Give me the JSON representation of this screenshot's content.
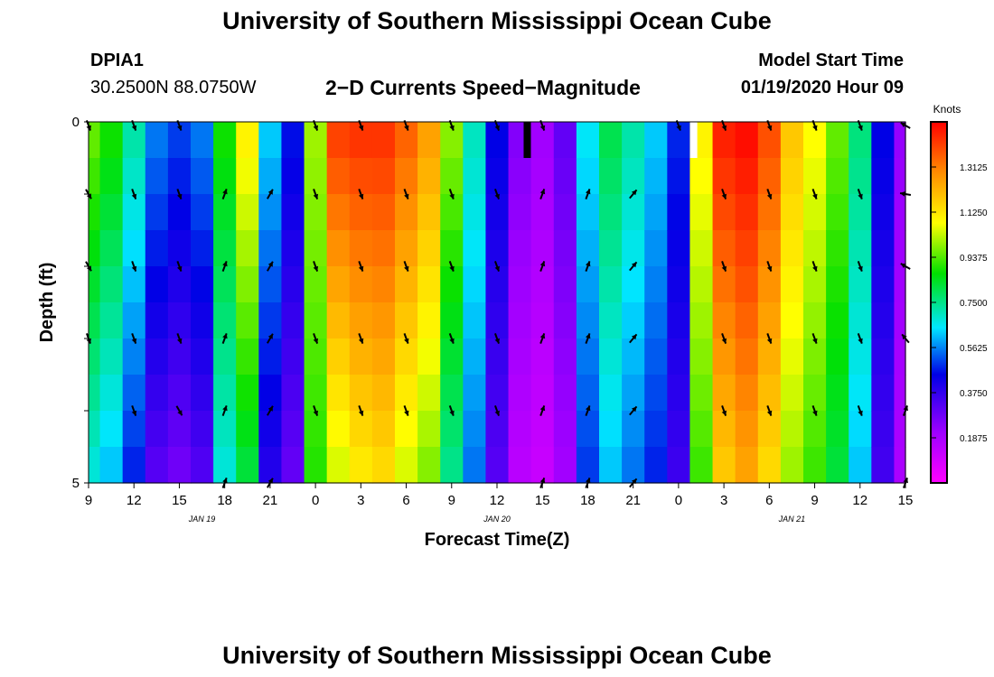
{
  "header": {
    "title": "University of Southern Mississippi Ocean Cube",
    "station_id": "DPIA1",
    "coordinates": "30.2500N 88.0750W",
    "subtitle": "2−D Currents Speed−Magnitude",
    "model_start_label": "Model Start Time",
    "model_start_value": "01/19/2020 Hour 09"
  },
  "footer": {
    "title": "University of Southern Mississippi Ocean Cube"
  },
  "chart_data": {
    "type": "heatmap",
    "title": "2−D Currents Speed−Magnitude",
    "xlabel": "Forecast Time(Z)",
    "ylabel": "Depth (ft)",
    "x_range_hours": [
      0,
      54
    ],
    "y_range_ft": [
      0,
      5
    ],
    "x_ticks": [
      {
        "hour": 0,
        "label": "9"
      },
      {
        "hour": 3,
        "label": "12"
      },
      {
        "hour": 6,
        "label": "15"
      },
      {
        "hour": 9,
        "label": "18"
      },
      {
        "hour": 12,
        "label": "21"
      },
      {
        "hour": 15,
        "label": "0"
      },
      {
        "hour": 18,
        "label": "3"
      },
      {
        "hour": 21,
        "label": "6"
      },
      {
        "hour": 24,
        "label": "9"
      },
      {
        "hour": 27,
        "label": "12"
      },
      {
        "hour": 30,
        "label": "15"
      },
      {
        "hour": 33,
        "label": "18"
      },
      {
        "hour": 36,
        "label": "21"
      },
      {
        "hour": 39,
        "label": "0"
      },
      {
        "hour": 42,
        "label": "3"
      },
      {
        "hour": 45,
        "label": "6"
      },
      {
        "hour": 48,
        "label": "9"
      },
      {
        "hour": 51,
        "label": "12"
      },
      {
        "hour": 54,
        "label": "15"
      }
    ],
    "date_labels": [
      {
        "hour": 7.5,
        "label": "JAN 19"
      },
      {
        "hour": 27,
        "label": "JAN 20"
      },
      {
        "hour": 46.5,
        "label": "JAN 21"
      }
    ],
    "y_ticks": [
      {
        "depth": 0,
        "label": "0"
      },
      {
        "depth": 1,
        "label": ""
      },
      {
        "depth": 2,
        "label": ""
      },
      {
        "depth": 3,
        "label": ""
      },
      {
        "depth": 4,
        "label": ""
      },
      {
        "depth": 5,
        "label": "5"
      }
    ],
    "colorbar": {
      "title": "Knots",
      "range": [
        0.0,
        1.5
      ],
      "tick_values": [
        0.1875,
        0.375,
        0.5625,
        0.75,
        0.9375,
        1.125,
        1.3125
      ],
      "tick_labels": [
        "0.1875",
        "0.3750",
        "0.5625",
        "0.7500",
        "0.9375",
        "1.1250",
        "1.3125"
      ]
    },
    "depth_bin_labels": [
      "0.25",
      "0.75",
      "1.25",
      "1.75",
      "2.25",
      "2.75",
      "3.25",
      "3.75",
      "4.25",
      "4.75"
    ],
    "speed_profile_surface_knots": [
      0.95,
      0.88,
      0.72,
      0.55,
      0.5,
      0.55,
      0.88,
      1.1,
      0.62,
      0.46,
      1.0,
      1.4,
      1.42,
      1.42,
      1.35,
      1.25,
      0.98,
      0.7,
      0.45,
      0.25,
      0.2,
      0.3,
      0.65,
      0.8,
      0.72,
      0.62,
      0.48,
      1.1,
      1.45,
      1.48,
      1.38,
      1.18,
      1.08,
      0.95,
      0.76,
      0.45,
      0.22
    ],
    "speed_profile_bottom_knots": [
      0.68,
      0.62,
      0.48,
      0.32,
      0.28,
      0.33,
      0.68,
      0.82,
      0.4,
      0.3,
      0.9,
      1.05,
      1.12,
      1.15,
      1.05,
      0.98,
      0.75,
      0.55,
      0.32,
      0.15,
      0.12,
      0.2,
      0.5,
      0.62,
      0.55,
      0.48,
      0.36,
      0.92,
      1.18,
      1.25,
      1.15,
      1.0,
      0.92,
      0.82,
      0.62,
      0.35,
      0.18
    ],
    "arrow_times_hours": [
      0,
      3,
      6,
      9,
      12,
      15,
      18,
      21,
      24,
      27,
      30,
      33,
      36,
      39,
      42,
      45,
      48,
      51,
      54
    ],
    "arrow_depths_ft": [
      0.0,
      1.0,
      2.0,
      3.0,
      4.0,
      5.0
    ],
    "arrow_directions_deg": [
      [
        160,
        160,
        160,
        null,
        null,
        160,
        160,
        160,
        160,
        160,
        160,
        null,
        null,
        160,
        160,
        160,
        160,
        160,
        300
      ],
      [
        150,
        160,
        160,
        20,
        30,
        160,
        160,
        160,
        160,
        160,
        20,
        20,
        40,
        null,
        160,
        160,
        160,
        160,
        280
      ],
      [
        150,
        160,
        160,
        20,
        30,
        160,
        160,
        160,
        160,
        160,
        20,
        20,
        40,
        null,
        160,
        160,
        160,
        160,
        300
      ],
      [
        160,
        160,
        160,
        20,
        30,
        160,
        160,
        160,
        160,
        160,
        20,
        20,
        40,
        null,
        160,
        160,
        160,
        160,
        320
      ],
      [
        null,
        160,
        150,
        20,
        30,
        160,
        160,
        160,
        160,
        160,
        20,
        20,
        40,
        null,
        160,
        160,
        160,
        160,
        20
      ],
      [
        null,
        null,
        null,
        20,
        30,
        null,
        null,
        null,
        null,
        null,
        20,
        20,
        40,
        null,
        null,
        null,
        null,
        null,
        20
      ]
    ],
    "missing_markers": [
      {
        "hour": 29,
        "depth_from": 0,
        "depth_to": 0.5,
        "color": "#000000"
      },
      {
        "hour": 40,
        "depth_from": 0,
        "depth_to": 0.5,
        "color": "#ffffff"
      }
    ]
  }
}
